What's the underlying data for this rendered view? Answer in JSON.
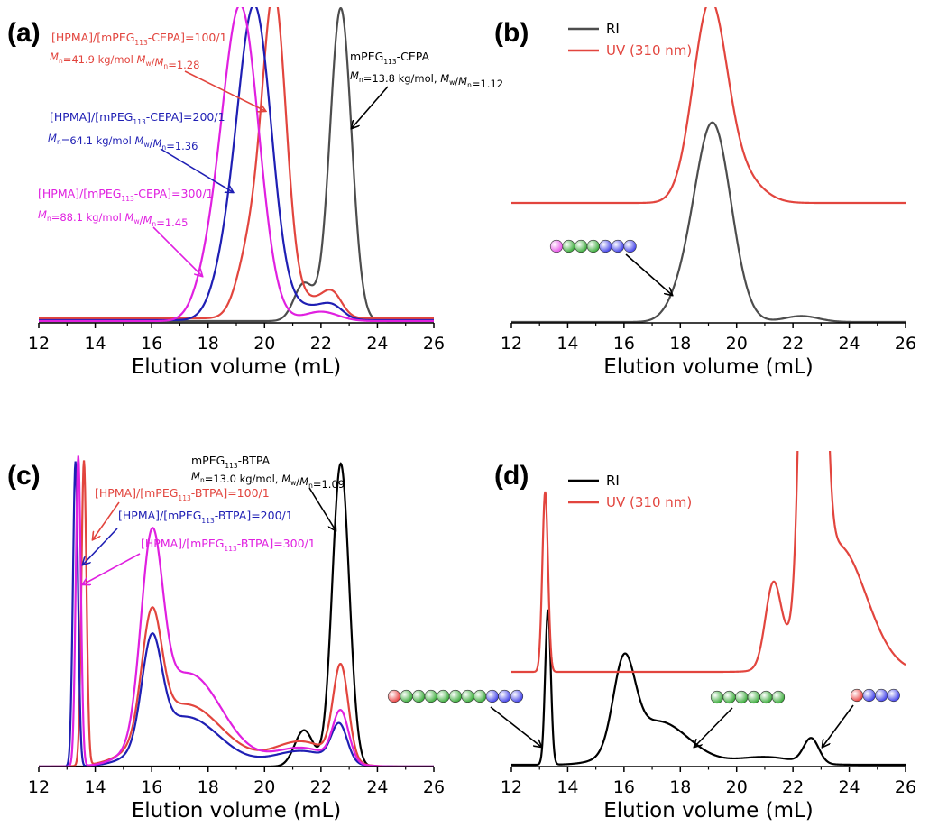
{
  "colors": {
    "black": "#000000",
    "gray": "#4d4d4d",
    "red": "#e2453e",
    "blue": "#1f1fb4",
    "magenta": "#e020e0",
    "bead_pink": "#e64ee6",
    "bead_red": "#e83a3a",
    "bead_green": "#32a832",
    "bead_blue": "#3a3ae8"
  },
  "chart_data": [
    {
      "panel": "(a)",
      "type": "line",
      "xlabel": "Elution volume (mL)",
      "xlim": [
        12,
        26
      ],
      "xticks": [
        "12",
        "14",
        "16",
        "18",
        "20",
        "22",
        "24",
        "26"
      ],
      "series": [
        {
          "name": "mPEG113-CEPA",
          "color": "#4d4d4d",
          "peaks": [
            [
              22.7,
              1.0,
              0.38
            ],
            [
              21.4,
              0.12,
              0.35
            ]
          ],
          "baseline": 0.0,
          "tail": 0.0
        },
        {
          "name": "[HPMA]/[mPEG113-CEPA]=100/1",
          "color": "#e2453e",
          "peaks": [
            [
              20.35,
              1.0,
              0.42
            ],
            [
              19.5,
              0.22,
              0.45
            ],
            [
              22.4,
              0.07,
              0.35
            ],
            [
              21.5,
              0.06,
              0.6
            ]
          ],
          "baseline": 0.0,
          "tail": 0.0
        },
        {
          "name": "[HPMA]/[mPEG113-CEPA]=200/1",
          "color": "#1f1fb4",
          "peaks": [
            [
              19.65,
              1.0,
              0.6
            ],
            [
              18.6,
              0.12,
              0.5
            ],
            [
              22.4,
              0.04,
              0.4
            ],
            [
              21.5,
              0.04,
              0.6
            ]
          ],
          "baseline": 0.0,
          "tail": 0.0
        },
        {
          "name": "[HPMA]/[mPEG113-CEPA]=300/1",
          "color": "#e020e0",
          "peaks": [
            [
              19.15,
              1.0,
              0.65
            ],
            [
              18.0,
              0.1,
              0.5
            ],
            [
              22.0,
              0.03,
              0.6
            ]
          ],
          "baseline": 0.0,
          "tail": 0.0
        }
      ],
      "annotations": [
        {
          "line1": "[HPMA]/[mPEG",
          "sub": "113",
          "line1b": "-CEPA]=100/1",
          "line2": "Mn=41.9 kg/mol Mw/Mn=1.28",
          "color": "#e2453e"
        },
        {
          "line1": "[HPMA]/[mPEG",
          "sub": "113",
          "line1b": "-CEPA]=200/1",
          "line2": "Mn=64.1 kg/mol Mw/Mn=1.36",
          "color": "#1f1fb4"
        },
        {
          "line1": "[HPMA]/[mPEG",
          "sub": "113",
          "line1b": "-CEPA]=300/1",
          "line2": "Mn=88.1 kg/mol Mw/Mn=1.45",
          "color": "#e020e0"
        },
        {
          "line1": "mPEG",
          "sub": "113",
          "line1b": "-CEPA",
          "line2": "Mn=13.8 kg/mol, Mw/Mn=1.12",
          "color": "#000000"
        }
      ]
    },
    {
      "panel": "(b)",
      "type": "line",
      "xlabel": "Elution volume (mL)",
      "xlim": [
        12,
        26
      ],
      "xticks": [
        "12",
        "14",
        "16",
        "18",
        "20",
        "22",
        "24",
        "26"
      ],
      "legend": [
        "RI",
        "UV (310 nm)"
      ],
      "series": [
        {
          "name": "RI",
          "color": "#4d4d4d",
          "peaks": [
            [
              19.15,
              1.0,
              0.65
            ],
            [
              18.0,
              0.08,
              0.5
            ],
            [
              22.3,
              0.03,
              0.6
            ]
          ]
        },
        {
          "name": "UV (310 nm)",
          "color": "#e2453e",
          "peaks": [
            [
              19.05,
              1.0,
              0.6
            ],
            [
              20.2,
              0.12,
              0.7
            ]
          ]
        }
      ]
    },
    {
      "panel": "(c)",
      "type": "line",
      "xlabel": "Elution volume (mL)",
      "xlim": [
        12,
        26
      ],
      "xticks": [
        "12",
        "14",
        "16",
        "18",
        "20",
        "22",
        "24",
        "26"
      ],
      "series": [
        {
          "name": "mPEG113-BTPA",
          "color": "#000000",
          "peaks": [
            [
              22.7,
              1.0,
              0.3
            ],
            [
              21.4,
              0.12,
              0.33
            ]
          ]
        },
        {
          "name": "[HPMA]/[mPEG113-BTPA]=100/1",
          "color": "#e2453e",
          "peaks": [
            [
              13.6,
              0.98,
              0.09
            ],
            [
              16.0,
              0.38,
              0.35
            ],
            [
              17.2,
              0.2,
              1.3
            ],
            [
              22.7,
              0.3,
              0.27
            ],
            [
              21.3,
              0.08,
              1.0
            ]
          ]
        },
        {
          "name": "[HPMA]/[mPEG113-BTPA]=200/1",
          "color": "#1f1fb4",
          "peaks": [
            [
              13.3,
              0.98,
              0.09
            ],
            [
              16.0,
              0.33,
              0.35
            ],
            [
              17.2,
              0.16,
              1.2
            ],
            [
              22.65,
              0.12,
              0.28
            ],
            [
              21.3,
              0.05,
              1.0
            ]
          ]
        },
        {
          "name": "[HPMA]/[mPEG113-BTPA]=300/1",
          "color": "#e020e0",
          "peaks": [
            [
              13.4,
              1.0,
              0.09
            ],
            [
              16.0,
              0.6,
              0.38
            ],
            [
              17.3,
              0.3,
              1.2
            ],
            [
              22.7,
              0.16,
              0.28
            ],
            [
              21.3,
              0.06,
              1.0
            ]
          ]
        }
      ],
      "annotations": [
        {
          "line1": "[HPMA]/[mPEG",
          "sub": "113",
          "line1b": "-BTPA]=100/1",
          "color": "#e2453e"
        },
        {
          "line1": "[HPMA]/[mPEG",
          "sub": "113",
          "line1b": "-BTPA]=200/1",
          "color": "#1f1fb4"
        },
        {
          "line1": "[HPMA]/[mPEG",
          "sub": "113",
          "line1b": "-BTPA]=300/1",
          "color": "#e020e0"
        },
        {
          "line1": "mPEG",
          "sub": "113",
          "line1b": "-BTPA",
          "line2": "Mn=13.0 kg/mol, Mw/Mn=1.09",
          "color": "#000000"
        }
      ]
    },
    {
      "panel": "(d)",
      "type": "line",
      "xlabel": "Elution volume (mL)",
      "xlim": [
        12,
        26
      ],
      "xticks": [
        "12",
        "14",
        "16",
        "18",
        "20",
        "22",
        "24",
        "26"
      ],
      "legend": [
        "RI",
        "UV (310 nm)"
      ],
      "series": [
        {
          "name": "RI",
          "color": "#000000",
          "peaks": [
            [
              13.3,
              1.0,
              0.1
            ],
            [
              16.0,
              0.56,
              0.38
            ],
            [
              17.2,
              0.28,
              1.1
            ],
            [
              22.65,
              0.16,
              0.27
            ],
            [
              21.0,
              0.05,
              1.0
            ]
          ]
        },
        {
          "name": "UV (310 nm)",
          "color": "#e2453e",
          "peaks": [
            [
              13.2,
              1.0,
              0.1
            ],
            [
              22.7,
              6.0,
              0.28
            ],
            [
              21.3,
              0.45,
              0.28
            ],
            [
              23.6,
              0.7,
              1.0
            ]
          ]
        }
      ]
    }
  ]
}
